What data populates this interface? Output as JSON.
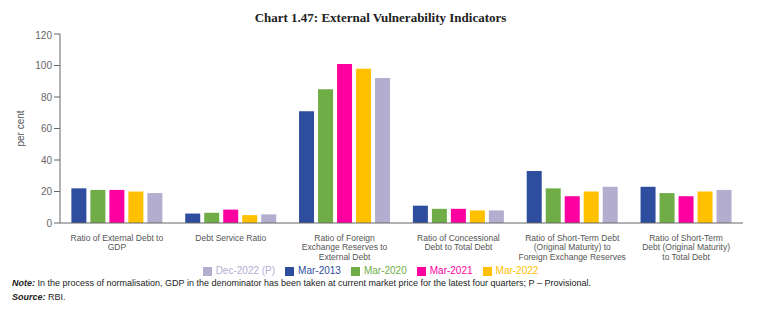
{
  "chart_data": {
    "type": "bar",
    "title": "Chart 1.47: External Vulnerability Indicators",
    "categories": [
      "Ratio of External Debt to\nGDP",
      "Debt Service Ratio",
      "Ratio of Foreign\nExchange Reserves to\nExternal Debt",
      "Ratio of Concessional\nDebt to Total Debt",
      "Ratio of Short-Term Debt\n(Original Maturity) to\nForeign Exchange Reserves",
      "Ratio of Short-Term\nDebt (Original Maturity)\nto Total Debt"
    ],
    "series": [
      {
        "name": "Mar-2013",
        "color": "#2e4d9e",
        "values": [
          22,
          6,
          71,
          11,
          33,
          23
        ]
      },
      {
        "name": "Mar-2020",
        "color": "#70ad47",
        "values": [
          21,
          6.5,
          85,
          9,
          22,
          19
        ]
      },
      {
        "name": "Mar-2021",
        "color": "#ff00a0",
        "values": [
          21,
          8.5,
          101,
          9,
          17,
          17
        ]
      },
      {
        "name": "Mar-2022",
        "color": "#ffc000",
        "values": [
          20,
          5,
          98,
          8,
          20,
          20
        ]
      },
      {
        "name": "Dec-2022 (P)",
        "color": "#b3aed0",
        "values": [
          19,
          5.5,
          92,
          8,
          23,
          21
        ]
      }
    ],
    "ylabel": "per cent",
    "ylim": [
      0,
      120
    ],
    "yticks": [
      0,
      20,
      40,
      60,
      80,
      100,
      120
    ],
    "grid": false,
    "annotations": [
      "Note: In the process of normalisation, GDP in the denominator has been taken at current market price for the latest four quarters; P – Provisional.",
      "Source: RBI."
    ]
  }
}
